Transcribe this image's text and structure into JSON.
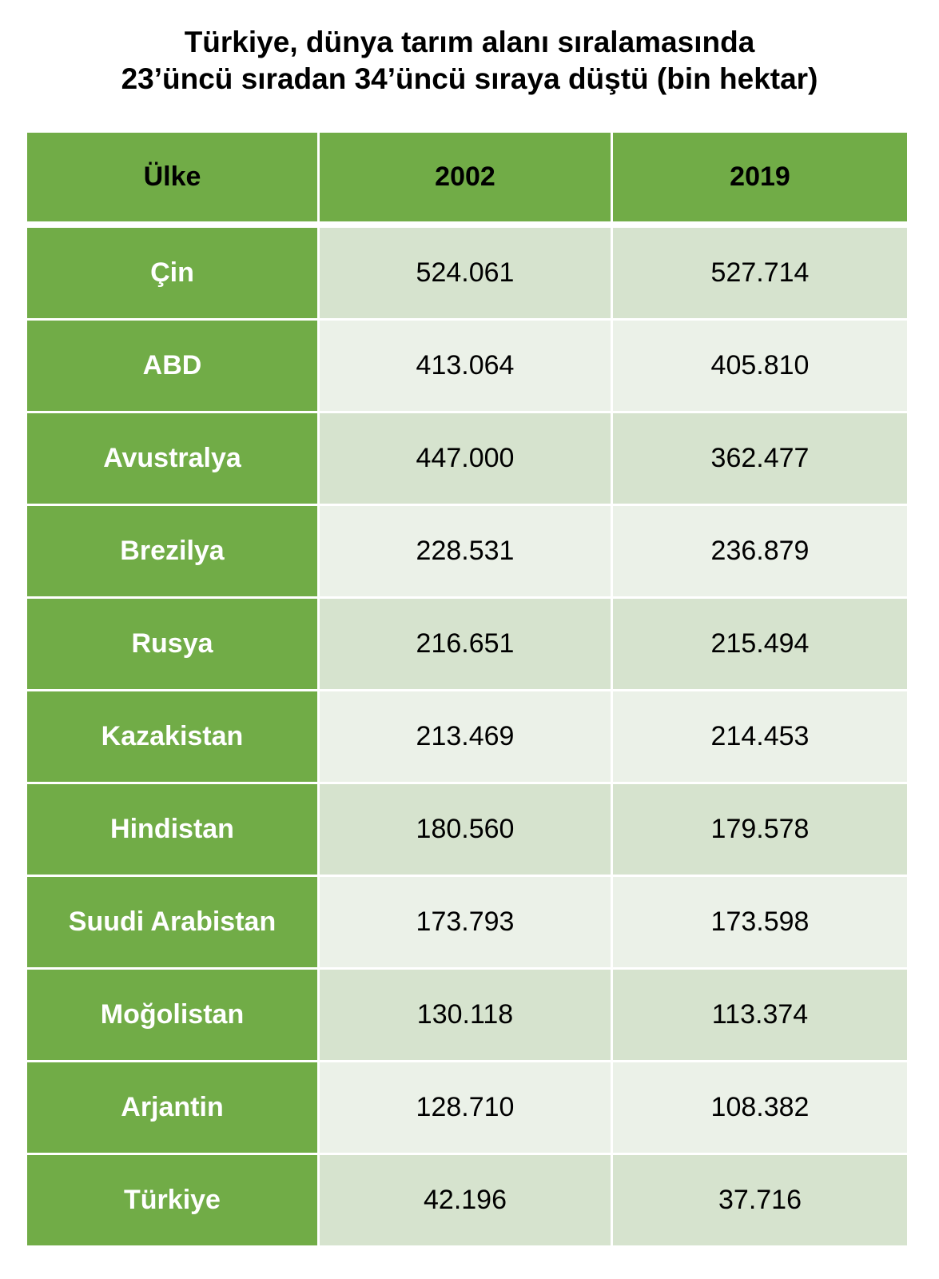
{
  "title_lines": [
    "Türkiye, dünya tarım alanı sıralamasında",
    "23’üncü sıradan 34’üncü sıraya düştü (bin hektar)"
  ],
  "colors": {
    "header_bg": "#71ac47",
    "country_bg": "#71ac47",
    "row_band_dark": "#d6e3ce",
    "row_band_light": "#ebf1e8"
  },
  "chart_data": {
    "type": "table",
    "title": "Türkiye, dünya tarım alanı sıralamasında 23’üncü sıradan 34’üncü sıraya düştü (bin hektar)",
    "columns": [
      "Ülke",
      "2002",
      "2019"
    ],
    "rows": [
      [
        "Çin",
        "524.061",
        "527.714"
      ],
      [
        "ABD",
        "413.064",
        "405.810"
      ],
      [
        "Avustralya",
        "447.000",
        "362.477"
      ],
      [
        "Brezilya",
        "228.531",
        "236.879"
      ],
      [
        "Rusya",
        "216.651",
        "215.494"
      ],
      [
        "Kazakistan",
        "213.469",
        "214.453"
      ],
      [
        "Hindistan",
        "180.560",
        "179.578"
      ],
      [
        "Suudi Arabistan",
        "173.793",
        "173.598"
      ],
      [
        "Moğolistan",
        "130.118",
        "113.374"
      ],
      [
        "Arjantin",
        "128.710",
        "108.382"
      ],
      [
        "Türkiye",
        "42.196",
        "37.716"
      ]
    ]
  }
}
